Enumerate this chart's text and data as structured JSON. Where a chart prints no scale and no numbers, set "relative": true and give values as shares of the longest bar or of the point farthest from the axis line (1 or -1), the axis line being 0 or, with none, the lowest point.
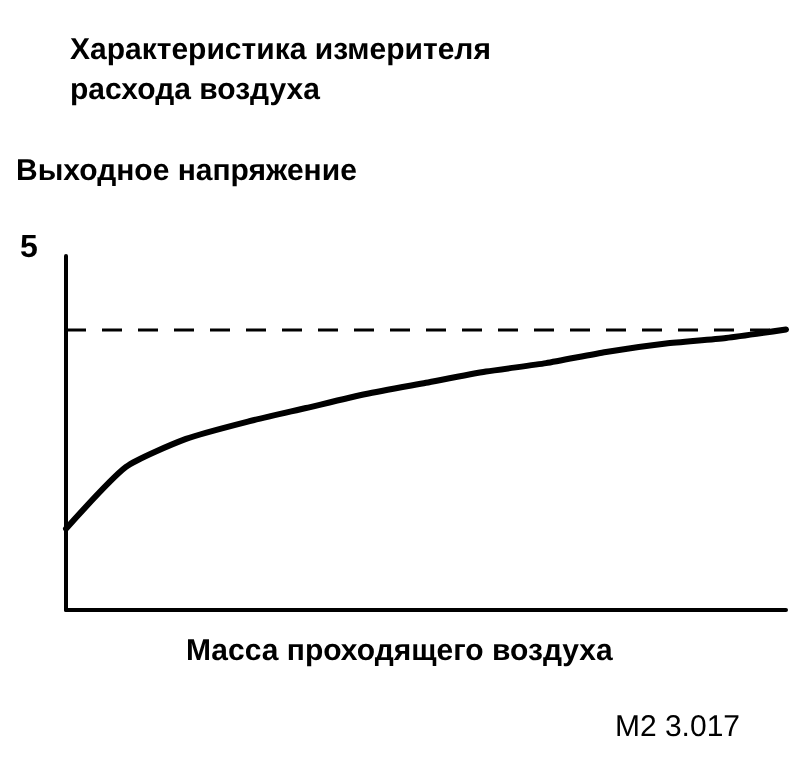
{
  "chart_data": {
    "type": "line",
    "title": "Характеристика измерителя\nрасхода воздуха",
    "ylabel": "Выходное напряжение",
    "xlabel": "Масса проходящего воздуха",
    "annotations": [
      "5",
      "M2 3.017"
    ],
    "relative": true,
    "categories": [
      null,
      null,
      null,
      null,
      null,
      null,
      null,
      null,
      null,
      null,
      null,
      null,
      null
    ],
    "series": [
      {
        "color": "#000000",
        "values": [
          0.29,
          0.51,
          0.61,
          0.67,
          0.72,
          0.77,
          0.81,
          0.85,
          0.88,
          0.92,
          0.95,
          0.97,
          1
        ]
      }
    ],
    "ref_lines": [
      {
        "axis": "y",
        "value": 1,
        "color": "#000000",
        "line_style": "dashed"
      }
    ],
    "grid": false,
    "marker": "none",
    "line_style": "solid"
  }
}
